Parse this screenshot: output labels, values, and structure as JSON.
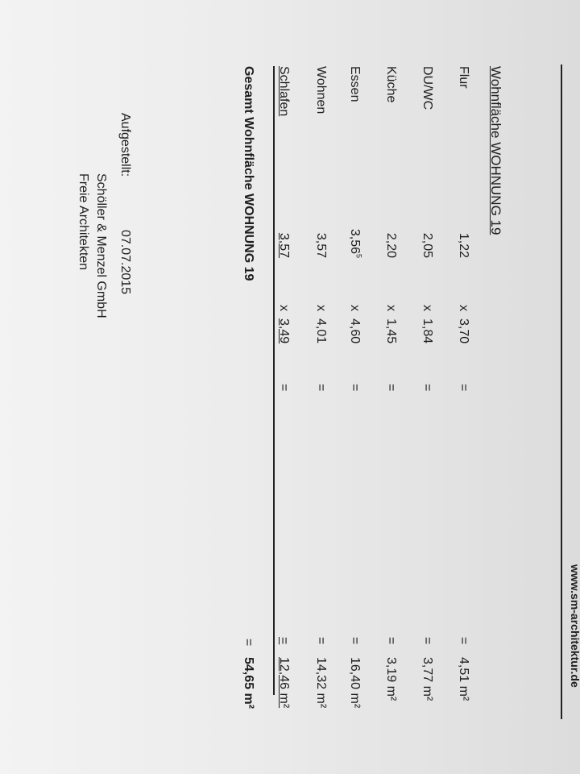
{
  "header": {
    "website": "www.sm-architektur.de"
  },
  "title": "Wohnfläche WOHNUNG 19",
  "rows": [
    {
      "room": "Flur",
      "a": "1,22",
      "op": "x",
      "b": "3,70",
      "eq": "=",
      "area": "4,51 m²"
    },
    {
      "room": "DU/WC",
      "a": "2,05",
      "op": "x",
      "b": "1,84",
      "eq": "=",
      "area": "3,77 m²"
    },
    {
      "room": "Küche",
      "a": "2,20",
      "op": "x",
      "b": "1,45",
      "eq": "=",
      "area": "3,19 m²"
    },
    {
      "room": "Essen",
      "a": "3,56",
      "a_sup": "5",
      "op": "x",
      "b": "4,60",
      "eq": "=",
      "area": "16,40 m²"
    },
    {
      "room": "Wohnen",
      "a": "3,57",
      "op": "x",
      "b": "4,01",
      "eq": "=",
      "area": "14,32 m²"
    },
    {
      "room": "Schlafen",
      "a": "3,57",
      "op": "x",
      "b": "3,49",
      "eq": "=",
      "area": "12,46 m²"
    }
  ],
  "total": {
    "label": "Gesamt Wohnfläche WOHNUNG 19",
    "eq": "=",
    "area": "54,65 m²"
  },
  "footer": {
    "label": "Aufgestellt:",
    "date": "07.07.2015",
    "company": "Schöller & Menzel GmbH",
    "subtitle": "Freie Architekten"
  }
}
